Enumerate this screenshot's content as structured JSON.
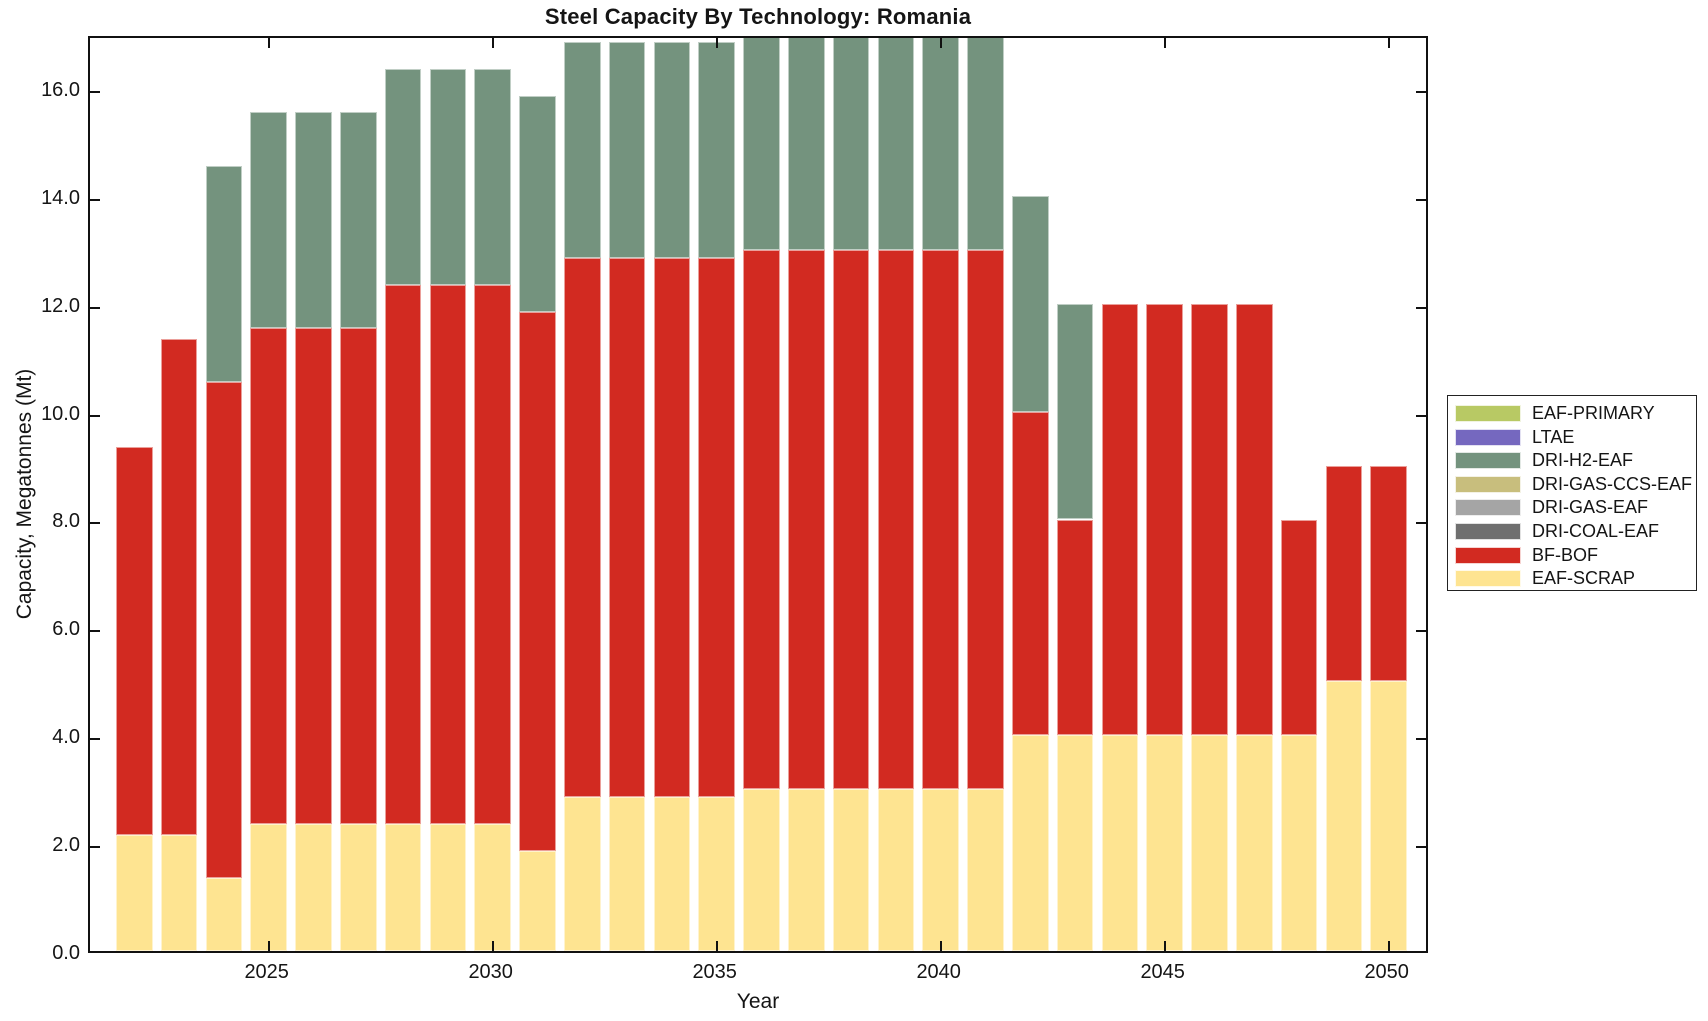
{
  "title": "Steel Capacity By Technology: Romania",
  "xlabel": "Year",
  "ylabel": "Capacity, Megatonnes (Mt)",
  "axes": {
    "y_tick_labels": [
      "0.0",
      "2.0",
      "4.0",
      "6.0",
      "8.0",
      "10.0",
      "12.0",
      "14.0",
      "16.0"
    ],
    "y_tick_values": [
      0,
      2,
      4,
      6,
      8,
      10,
      12,
      14,
      16
    ],
    "x_tick_labels": [
      "2025",
      "2030",
      "2035",
      "2040",
      "2045",
      "2050"
    ],
    "x_tick_values": [
      2025,
      2030,
      2035,
      2040,
      2045,
      2050
    ],
    "ylim": [
      0,
      17
    ],
    "xlim": [
      2021,
      2051
    ],
    "grid": false,
    "box": true,
    "tick_direction": "in"
  },
  "legend": {
    "position": "right-outside",
    "items": [
      {
        "label": "EAF-PRIMARY",
        "color": "#b8c964"
      },
      {
        "label": "LTAE",
        "color": "#7568bf"
      },
      {
        "label": "DRI-H2-EAF",
        "color": "#74937e"
      },
      {
        "label": "DRI-GAS-CCS-EAF",
        "color": "#c8be7d"
      },
      {
        "label": "DRI-GAS-EAF",
        "color": "#a5a5a5"
      },
      {
        "label": "DRI-COAL-EAF",
        "color": "#6f6f6f"
      },
      {
        "label": "BF-BOF",
        "color": "#d22a21"
      },
      {
        "label": "EAF-SCRAP",
        "color": "#fee491"
      }
    ]
  },
  "chart_data": {
    "type": "bar",
    "stacked": true,
    "title": "Steel Capacity By Technology: Romania",
    "xlabel": "Year",
    "ylabel": "Capacity, Megatonnes (Mt)",
    "ylim": [
      0,
      17
    ],
    "categories": [
      2022,
      2023,
      2024,
      2025,
      2026,
      2027,
      2028,
      2029,
      2030,
      2031,
      2032,
      2033,
      2034,
      2035,
      2036,
      2037,
      2038,
      2039,
      2040,
      2041,
      2042,
      2043,
      2044,
      2045,
      2046,
      2047,
      2048,
      2049,
      2050
    ],
    "series": [
      {
        "name": "EAF-SCRAP",
        "color": "#fee491",
        "values": [
          2.15,
          2.15,
          1.35,
          2.35,
          2.35,
          2.35,
          2.35,
          2.35,
          2.35,
          1.85,
          2.85,
          2.85,
          2.85,
          2.85,
          3,
          3,
          3,
          3,
          3,
          3,
          4,
          4,
          4,
          4,
          4,
          4,
          4,
          5,
          5
        ]
      },
      {
        "name": "BF-BOF",
        "color": "#d22a21",
        "values": [
          7.2,
          9.2,
          9.2,
          9.2,
          9.2,
          9.2,
          10,
          10,
          10,
          10,
          10,
          10,
          10,
          10,
          10,
          10,
          10,
          10,
          10,
          10,
          6,
          4,
          8,
          8,
          8,
          8,
          4,
          4,
          4
        ]
      },
      {
        "name": "DRI-H2-EAF",
        "color": "#74937e",
        "values": [
          0,
          0,
          4,
          4,
          4,
          4,
          4,
          4,
          4,
          4,
          4,
          4,
          4,
          4,
          4,
          4,
          4,
          4,
          4,
          4,
          4,
          4,
          0,
          0,
          0,
          0,
          0,
          0,
          0
        ]
      }
    ],
    "notes": "Bars for 2036-2041 reach the top of the axes and are visually clipped at 17.0 Mt. Legend technologies EAF-PRIMARY, LTAE, DRI-GAS-CCS-EAF, DRI-GAS-EAF and DRI-COAL-EAF show no visible segments."
  }
}
